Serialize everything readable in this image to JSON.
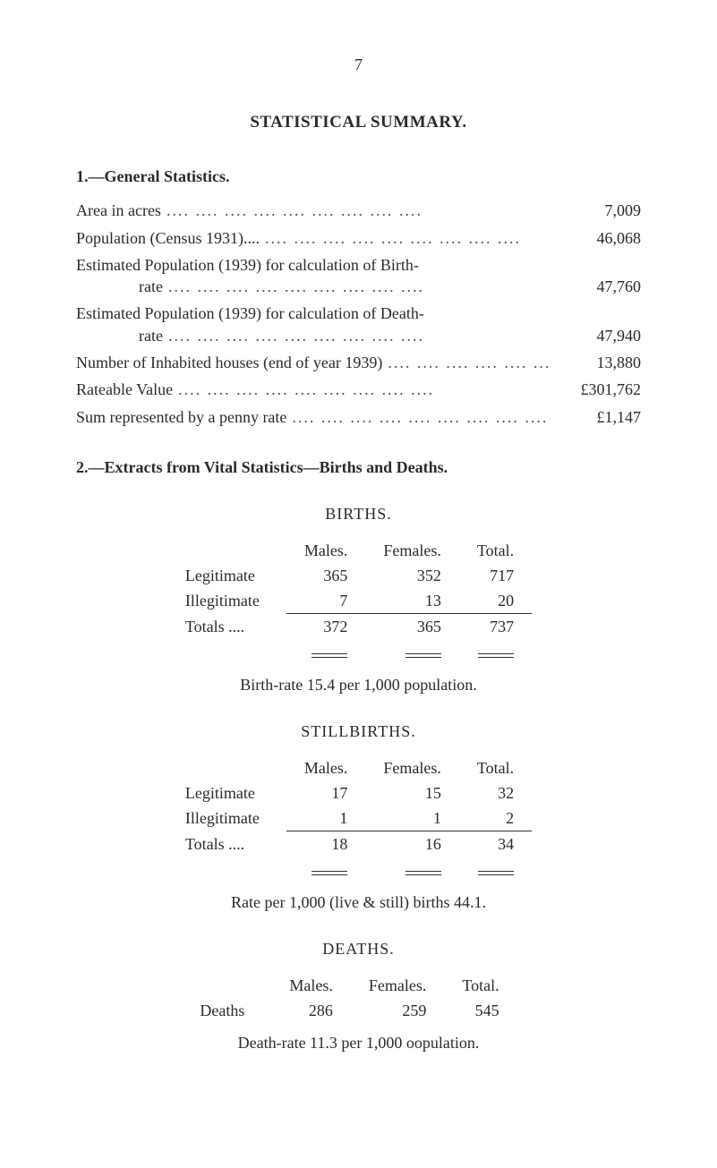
{
  "page_number": "7",
  "title": "STATISTICAL SUMMARY.",
  "section1": {
    "heading": "1.—General Statistics.",
    "rows": [
      {
        "label": "Area in acres",
        "value": "7,009",
        "two_line": false
      },
      {
        "label": "Population (Census 1931)....",
        "value": "46,068",
        "two_line": false
      },
      {
        "label_l1": "Estimated Population (1939) for calculation of Birth-",
        "label_l2": "rate",
        "value": "47,760",
        "two_line": true
      },
      {
        "label_l1": "Estimated Population (1939) for calculation of Death-",
        "label_l2": "rate",
        "value": "47,940",
        "two_line": true
      },
      {
        "label": "Number of Inhabited houses (end of year 1939)",
        "value": "13,880",
        "two_line": false
      },
      {
        "label": "Rateable Value",
        "value": "£301,762",
        "two_line": false
      },
      {
        "label": "Sum represented by a penny rate",
        "value": "£1,147",
        "two_line": false
      }
    ]
  },
  "section2": {
    "heading": "2.—Extracts from Vital Statistics—Births and Deaths.",
    "births": {
      "title": "BIRTHS.",
      "cols": [
        "Males.",
        "Females.",
        "Total."
      ],
      "rows": [
        {
          "label": "Legitimate",
          "m": "365",
          "f": "352",
          "t": "717"
        },
        {
          "label": "Illegitimate",
          "m": "7",
          "f": "13",
          "t": "20"
        }
      ],
      "totals": {
        "label": "Totals ....",
        "m": "372",
        "f": "365",
        "t": "737"
      },
      "note": "Birth-rate 15.4 per 1,000 population."
    },
    "stillbirths": {
      "title": "STILLBIRTHS.",
      "cols": [
        "Males.",
        "Females.",
        "Total."
      ],
      "rows": [
        {
          "label": "Legitimate",
          "m": "17",
          "f": "15",
          "t": "32"
        },
        {
          "label": "Illegitimate",
          "m": "1",
          "f": "1",
          "t": "2"
        }
      ],
      "totals": {
        "label": "Totals ....",
        "m": "18",
        "f": "16",
        "t": "34"
      },
      "note": "Rate per 1,000 (live & still) births 44.1."
    },
    "deaths": {
      "title": "DEATHS.",
      "cols": [
        "Males.",
        "Females.",
        "Total."
      ],
      "rows": [
        {
          "label": "Deaths",
          "m": "286",
          "f": "259",
          "t": "545"
        }
      ],
      "note": "Death-rate 11.3 per 1,000 oopulation."
    }
  }
}
